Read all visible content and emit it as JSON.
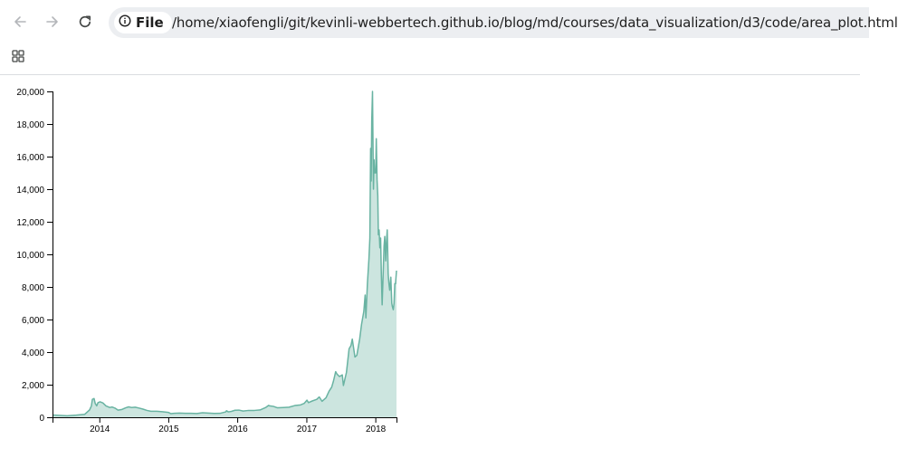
{
  "browser": {
    "chip_label": "File",
    "url": "/home/xiaofengli/git/kevinli-webbertech.github.io/blog/md/courses/data_visualization/d3/code/area_plot.html",
    "icons": [
      "back-arrow-icon",
      "forward-arrow-icon",
      "reload-icon",
      "info-icon",
      "apps-grid-icon"
    ]
  },
  "chart_data": {
    "type": "area",
    "title": "",
    "xlabel": "",
    "ylabel": "",
    "xlim": [
      "2013-04-28",
      "2018-04-23"
    ],
    "ylim": [
      0,
      20000
    ],
    "x_ticks": [
      "2014",
      "2015",
      "2016",
      "2017",
      "2018"
    ],
    "y_ticks": [
      "0",
      "2,000",
      "4,000",
      "6,000",
      "8,000",
      "10,000",
      "12,000",
      "14,000",
      "16,000",
      "18,000",
      "20,000"
    ],
    "grid": false,
    "legend": "none",
    "fill_color": "#cce5df",
    "stroke_color": "#69b3a2",
    "series": [
      {
        "x": [
          "2013-04-28",
          "2013-06-01",
          "2013-07-15",
          "2013-09-01",
          "2013-10-15",
          "2013-11-10",
          "2013-11-20",
          "2013-11-25",
          "2013-12-04",
          "2013-12-10",
          "2013-12-18",
          "2013-12-25",
          "2014-01-05",
          "2014-01-20",
          "2014-02-05",
          "2014-02-25",
          "2014-03-10",
          "2014-03-25",
          "2014-04-10",
          "2014-05-01",
          "2014-05-20",
          "2014-06-05",
          "2014-06-20",
          "2014-07-10",
          "2014-08-01",
          "2014-08-20",
          "2014-09-10",
          "2014-10-01",
          "2014-11-01",
          "2014-12-01",
          "2015-01-01",
          "2015-01-15",
          "2015-02-01",
          "2015-03-01",
          "2015-04-01",
          "2015-05-01",
          "2015-06-01",
          "2015-07-01",
          "2015-08-01",
          "2015-09-01",
          "2015-10-01",
          "2015-11-01",
          "2015-11-05",
          "2015-11-15",
          "2015-12-01",
          "2015-12-20",
          "2016-01-10",
          "2016-02-01",
          "2016-03-01",
          "2016-04-01",
          "2016-05-01",
          "2016-06-01",
          "2016-06-15",
          "2016-06-20",
          "2016-07-10",
          "2016-08-01",
          "2016-09-01",
          "2016-10-01",
          "2016-11-01",
          "2016-12-01",
          "2016-12-20",
          "2017-01-04",
          "2017-01-12",
          "2017-02-01",
          "2017-02-25",
          "2017-03-10",
          "2017-03-25",
          "2017-04-15",
          "2017-05-01",
          "2017-05-15",
          "2017-05-25",
          "2017-06-05",
          "2017-06-12",
          "2017-06-25",
          "2017-07-10",
          "2017-07-16",
          "2017-08-01",
          "2017-08-15",
          "2017-08-25",
          "2017-09-01",
          "2017-09-15",
          "2017-09-25",
          "2017-10-10",
          "2017-10-20",
          "2017-11-01",
          "2017-11-08",
          "2017-11-12",
          "2017-11-20",
          "2017-11-28",
          "2017-12-03",
          "2017-12-07",
          "2017-12-10",
          "2017-12-13",
          "2017-12-17",
          "2017-12-19",
          "2017-12-22",
          "2017-12-25",
          "2017-12-28",
          "2018-01-03",
          "2018-01-06",
          "2018-01-10",
          "2018-01-14",
          "2018-01-17",
          "2018-01-21",
          "2018-01-25",
          "2018-01-29",
          "2018-02-02",
          "2018-02-06",
          "2018-02-10",
          "2018-02-16",
          "2018-02-20",
          "2018-02-25",
          "2018-03-01",
          "2018-03-05",
          "2018-03-10",
          "2018-03-14",
          "2018-03-18",
          "2018-03-24",
          "2018-03-29",
          "2018-04-01",
          "2018-04-06",
          "2018-04-10",
          "2018-04-14",
          "2018-04-18",
          "2018-04-23"
        ],
        "y": [
          140,
          120,
          90,
          130,
          180,
          450,
          700,
          1100,
          1150,
          850,
          700,
          900,
          950,
          880,
          700,
          600,
          630,
          560,
          440,
          480,
          580,
          640,
          600,
          620,
          560,
          500,
          420,
          370,
          370,
          340,
          300,
          220,
          240,
          260,
          240,
          240,
          230,
          280,
          260,
          235,
          240,
          330,
          400,
          330,
          360,
          430,
          440,
          380,
          420,
          420,
          450,
          610,
          730,
          700,
          670,
          580,
          600,
          620,
          720,
          760,
          850,
          1050,
          900,
          1000,
          1100,
          1250,
          980,
          1200,
          1600,
          1850,
          2250,
          2800,
          2650,
          2500,
          2600,
          1950,
          2750,
          4200,
          4400,
          4800,
          3700,
          3800,
          4800,
          5700,
          6500,
          7500,
          6100,
          8200,
          9700,
          11000,
          16500,
          14500,
          18200,
          20000,
          17500,
          14000,
          15800,
          15000,
          15000,
          17100,
          14600,
          13600,
          11200,
          11500,
          10400,
          11000,
          8700,
          6900,
          8300,
          10500,
          11100,
          9600,
          10800,
          11500,
          8800,
          8200,
          7800,
          8600,
          7000,
          6800,
          6600,
          7000,
          8200,
          8200,
          9000
        ]
      }
    ]
  }
}
